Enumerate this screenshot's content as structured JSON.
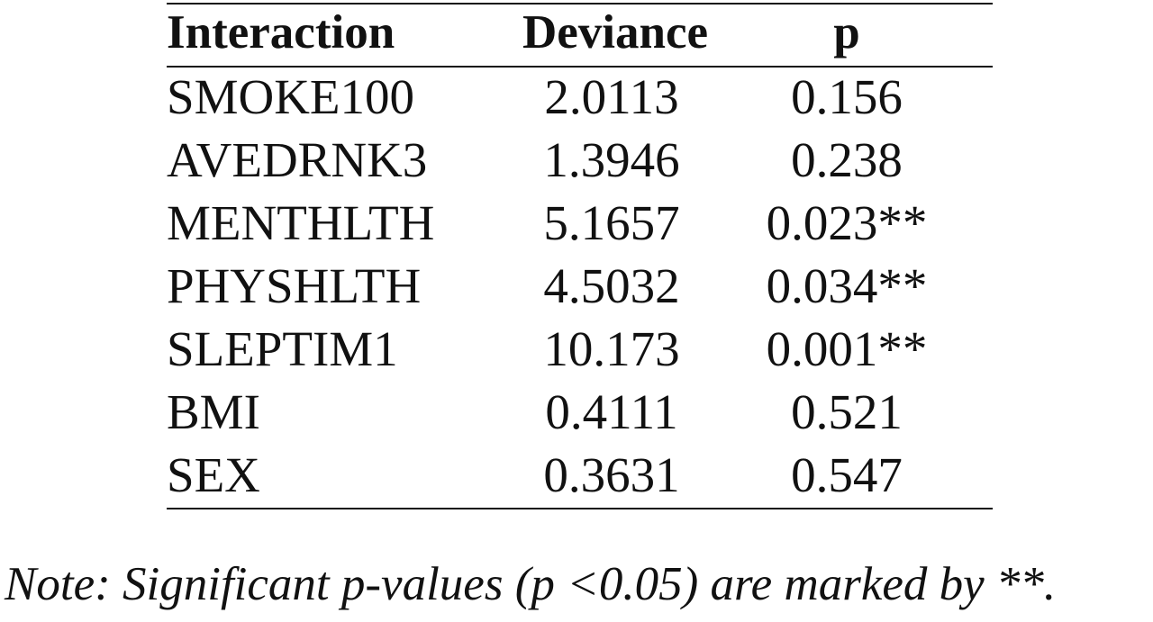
{
  "table": {
    "headers": {
      "interaction": "Interaction",
      "deviance": "Deviance",
      "p": "p"
    },
    "rows": [
      {
        "interaction": "SMOKE100",
        "deviance": "2.0113",
        "p": "0.156"
      },
      {
        "interaction": "AVEDRNK3",
        "deviance": "1.3946",
        "p": "0.238"
      },
      {
        "interaction": "MENTHLTH",
        "deviance": "5.1657",
        "p": "0.023**"
      },
      {
        "interaction": "PHYSHLTH",
        "deviance": "4.5032",
        "p": "0.034**"
      },
      {
        "interaction": "SLEPTIM1",
        "deviance": "10.173",
        "p": "0.001**"
      },
      {
        "interaction": "BMI",
        "deviance": "0.4111",
        "p": "0.521"
      },
      {
        "interaction": "SEX",
        "deviance": "0.3631",
        "p": "0.547"
      }
    ]
  },
  "note": "Note: Significant p-values (p <0.05) are marked by **."
}
